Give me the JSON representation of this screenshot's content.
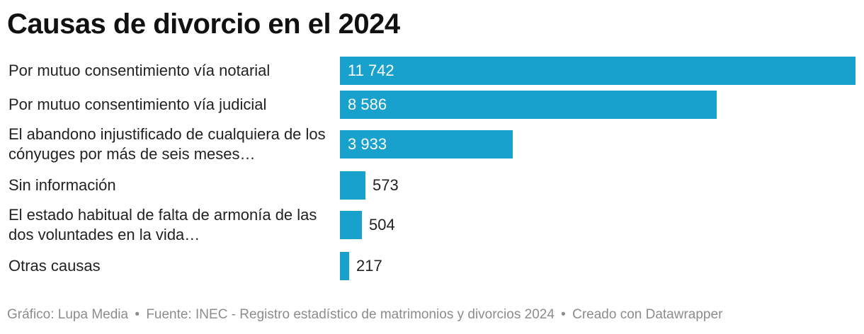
{
  "title": "Causas de divorcio en el 2024",
  "chart_data": {
    "type": "bar",
    "orientation": "horizontal",
    "title": "Causas de divorcio en el 2024",
    "categories": [
      "Por mutuo consentimiento vía notarial",
      "Por mutuo consentimiento vía judicial",
      "El abandono injustificado de cualquiera de los cónyuges por más de seis meses…",
      "Sin información",
      "El estado habitual de falta de armonía de las dos voluntades en la vida…",
      "Otras causas"
    ],
    "values": [
      11742,
      8586,
      3933,
      573,
      504,
      217
    ],
    "value_labels": [
      "11 742",
      "8 586",
      "3 933",
      "573",
      "504",
      "217"
    ],
    "xlim": [
      0,
      11742
    ],
    "bar_color": "#18a1cd",
    "grid": false
  },
  "footer": {
    "grafico": "Gráfico: Lupa Media",
    "fuente": "Fuente: INEC - Registro estadístico de matrimonios y divorcios 2024",
    "creado": "Creado con Datawrapper",
    "separator": "•"
  }
}
